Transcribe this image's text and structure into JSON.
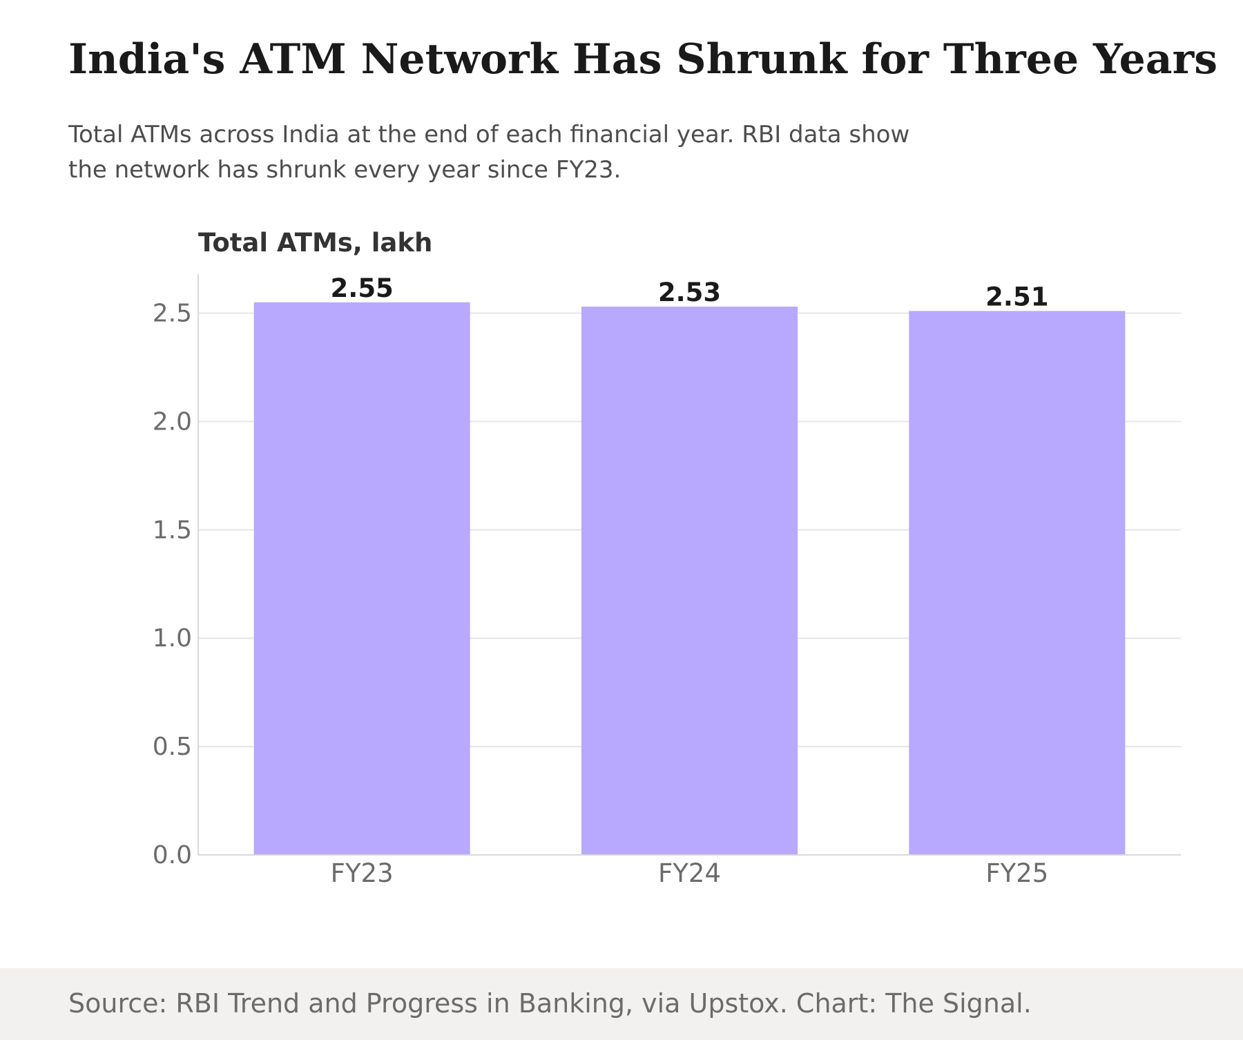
{
  "header": {
    "title": "India's ATM Network Has Shrunk for Three Years",
    "subtitle": "Total ATMs across India at the end of each financial year. RBI data show the network has shrunk every year since FY23."
  },
  "chart_data": {
    "type": "bar",
    "title": "India's ATM Network Has Shrunk for Three Years",
    "subtitle": "Total ATMs across India at the end of each financial year. RBI data show the network has shrunk every year since FY23.",
    "ylabel": "Total ATMs, lakh",
    "xlabel": "",
    "categories": [
      "FY23",
      "FY24",
      "FY25"
    ],
    "values": [
      2.55,
      2.53,
      2.51
    ],
    "value_labels": [
      "2.55",
      "2.53",
      "2.51"
    ],
    "yticks": [
      0.0,
      0.5,
      1.0,
      1.5,
      2.0,
      2.5
    ],
    "ytick_labels": [
      "0.0",
      "0.5",
      "1.0",
      "1.5",
      "2.0",
      "2.5"
    ],
    "ylim": [
      0,
      2.68
    ],
    "grid": true,
    "bar_color": "#b8a8fe"
  },
  "footer": {
    "source": "Source: RBI Trend and Progress in Banking, via Upstox. Chart: The Signal."
  },
  "colors": {
    "title": "#1a1a1a",
    "subtitle": "#4d4d4d",
    "axis_text": "#6b6b6b",
    "gridline": "#e6e6e6",
    "footer_bg": "#f2f1ef"
  }
}
